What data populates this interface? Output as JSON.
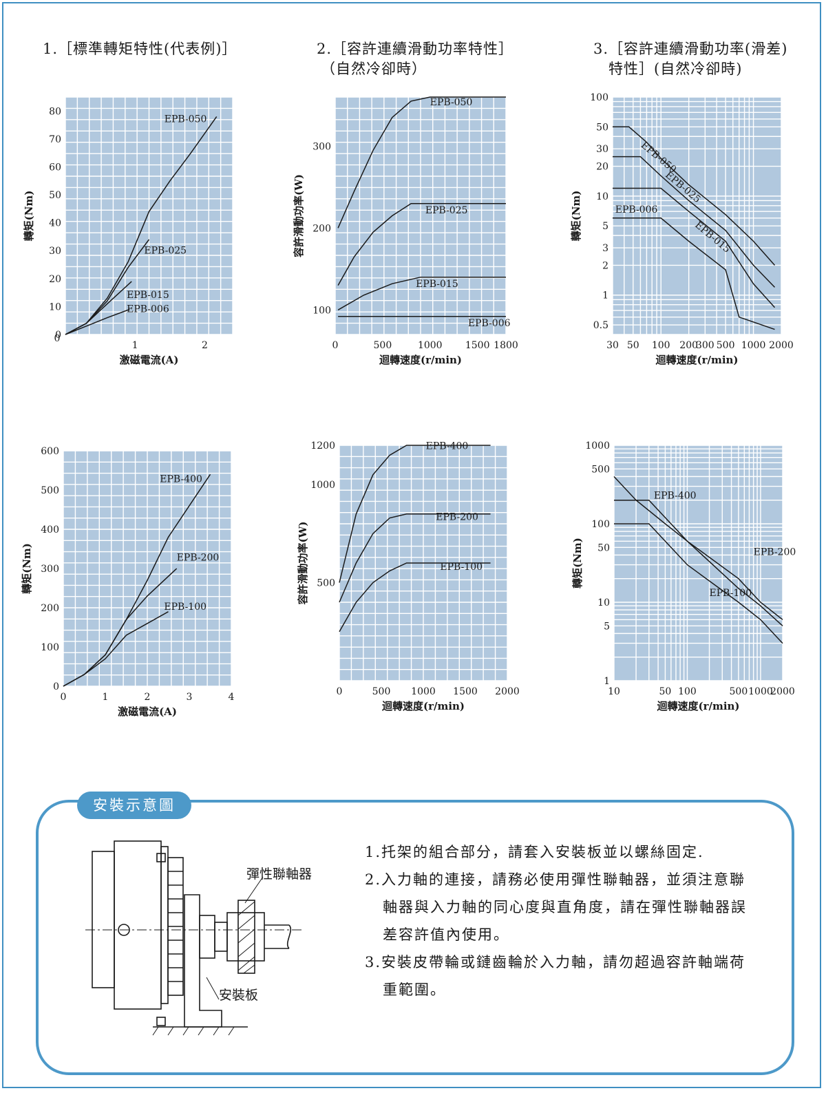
{
  "sections": [
    {
      "title_lines": [
        "1.［標準轉矩特性(代表例)］"
      ]
    },
    {
      "title_lines": [
        "2.［容許連續滑動功率特性］",
        "（自然冷卻時）"
      ]
    },
    {
      "title_lines": [
        "3.［容許連續滑動功率(滑差)",
        "特性］(自然冷卻時)"
      ]
    }
  ],
  "chart_data": [
    {
      "type": "line",
      "xlabel": "激磁電流(A)",
      "ylabel": "轉矩(Nm)",
      "xlim": [
        0,
        2.4
      ],
      "ylim": [
        0,
        85
      ],
      "xticks": [
        0,
        1,
        2
      ],
      "xtick_labels": [
        "",
        "1",
        "2"
      ],
      "yticks": [
        0,
        10,
        20,
        30,
        40,
        50,
        60,
        70,
        80
      ],
      "grid": true,
      "xscale": "linear",
      "yscale": "linear",
      "series": [
        {
          "name": "EPB-050",
          "points": [
            [
              0,
              0
            ],
            [
              0.3,
              4
            ],
            [
              0.6,
              13
            ],
            [
              0.9,
              26
            ],
            [
              1.2,
              44
            ],
            [
              1.5,
              55
            ],
            [
              1.8,
              65
            ],
            [
              2.17,
              78
            ]
          ],
          "label_pos": [
            1.42,
            76
          ]
        },
        {
          "name": "EPB-025",
          "points": [
            [
              0,
              0
            ],
            [
              0.3,
              4
            ],
            [
              0.6,
              12
            ],
            [
              0.9,
              24
            ],
            [
              1.2,
              34
            ]
          ],
          "label_pos": [
            1.13,
            29
          ]
        },
        {
          "name": "EPB-015",
          "points": [
            [
              0,
              0
            ],
            [
              0.3,
              4
            ],
            [
              0.6,
              11
            ],
            [
              0.95,
              19
            ]
          ],
          "label_pos": [
            0.88,
            13
          ]
        },
        {
          "name": "EPB-006",
          "points": [
            [
              0,
              0
            ],
            [
              0.3,
              3
            ],
            [
              0.6,
              6
            ],
            [
              0.92,
              9
            ]
          ],
          "label_pos": [
            0.88,
            8
          ]
        }
      ]
    },
    {
      "type": "line",
      "xlabel": "迴轉速度(r/min)",
      "ylabel": "容許滑動功率(W)",
      "xlim": [
        0,
        1800
      ],
      "ylim": [
        70,
        360
      ],
      "xticks": [
        0,
        500,
        1000,
        1500,
        1800
      ],
      "yticks": [
        100,
        200,
        300
      ],
      "grid": true,
      "xscale": "linear",
      "yscale": "linear",
      "series": [
        {
          "name": "EPB-050",
          "points": [
            [
              30,
              200
            ],
            [
              200,
              245
            ],
            [
              400,
              295
            ],
            [
              600,
              335
            ],
            [
              800,
              355
            ],
            [
              1000,
              360
            ],
            [
              1800,
              360
            ]
          ],
          "label_pos": [
            1000,
            350
          ]
        },
        {
          "name": "EPB-025",
          "points": [
            [
              30,
              130
            ],
            [
              200,
              165
            ],
            [
              400,
              195
            ],
            [
              600,
              215
            ],
            [
              800,
              230
            ],
            [
              1000,
              230
            ],
            [
              1800,
              230
            ]
          ],
          "label_pos": [
            950,
            218
          ]
        },
        {
          "name": "EPB-015",
          "points": [
            [
              30,
              100
            ],
            [
              300,
              118
            ],
            [
              600,
              132
            ],
            [
              900,
              140
            ],
            [
              1800,
              140
            ]
          ],
          "label_pos": [
            850,
            128
          ]
        },
        {
          "name": "EPB-006",
          "points": [
            [
              30,
              92
            ],
            [
              1800,
              92
            ]
          ],
          "label_pos": [
            1400,
            80
          ]
        }
      ]
    },
    {
      "type": "line",
      "xlabel": "迴轉速度(r/min)",
      "ylabel": "轉矩(Nm)",
      "xlim": [
        30,
        2000
      ],
      "ylim": [
        0.4,
        100
      ],
      "xticks": [
        30,
        50,
        100,
        200,
        300,
        500,
        1000,
        2000
      ],
      "yticks": [
        0.5,
        1,
        2,
        3,
        5,
        10,
        20,
        30,
        50,
        100
      ],
      "grid": true,
      "xscale": "log",
      "yscale": "log",
      "series": [
        {
          "name": "EPB-050",
          "points": [
            [
              30,
              50
            ],
            [
              45,
              50
            ],
            [
              70,
              35
            ],
            [
              100,
              24
            ],
            [
              200,
              13
            ],
            [
              500,
              6.5
            ],
            [
              1000,
              3.5
            ],
            [
              1700,
              2.0
            ]
          ],
          "label_pos": [
            60,
            32
          ],
          "label_rotate": 40
        },
        {
          "name": "EPB-025",
          "points": [
            [
              30,
              25
            ],
            [
              60,
              25
            ],
            [
              100,
              16
            ],
            [
              200,
              9
            ],
            [
              500,
              4.5
            ],
            [
              1000,
              2.0
            ],
            [
              1700,
              1.2
            ]
          ],
          "label_pos": [
            110,
            16
          ],
          "label_rotate": 40
        },
        {
          "name": "EPB-015",
          "points": [
            [
              30,
              12
            ],
            [
              100,
              12
            ],
            [
              200,
              7
            ],
            [
              500,
              3.5
            ],
            [
              1000,
              1.3
            ],
            [
              1700,
              0.75
            ]
          ],
          "label_pos": [
            230,
            5
          ],
          "label_rotate": 40
        },
        {
          "name": "EPB-006",
          "points": [
            [
              30,
              6
            ],
            [
              100,
              6
            ],
            [
              200,
              3.5
            ],
            [
              500,
              1.8
            ],
            [
              700,
              0.6
            ],
            [
              1700,
              0.45
            ]
          ],
          "label_pos": [
            32,
            6.8
          ]
        }
      ]
    },
    {
      "type": "line",
      "xlabel": "激磁電流(A)",
      "ylabel": "轉矩(Nm)",
      "xlim": [
        0,
        4
      ],
      "ylim": [
        0,
        600
      ],
      "xticks": [
        0,
        1,
        2,
        3,
        4
      ],
      "xtick_labels": [
        "0",
        "1",
        "2",
        "3",
        "4"
      ],
      "yticks": [
        0,
        100,
        200,
        300,
        400,
        500,
        600
      ],
      "grid": true,
      "xscale": "linear",
      "yscale": "linear",
      "series": [
        {
          "name": "EPB-400",
          "points": [
            [
              0,
              0
            ],
            [
              0.5,
              30
            ],
            [
              1.0,
              80
            ],
            [
              1.5,
              170
            ],
            [
              2.0,
              270
            ],
            [
              2.5,
              380
            ],
            [
              3.0,
              460
            ],
            [
              3.5,
              540
            ]
          ],
          "label_pos": [
            2.3,
            520
          ]
        },
        {
          "name": "EPB-200",
          "points": [
            [
              0,
              0
            ],
            [
              0.5,
              30
            ],
            [
              1.0,
              80
            ],
            [
              1.5,
              170
            ],
            [
              2.0,
              230
            ],
            [
              2.7,
              300
            ]
          ],
          "label_pos": [
            2.7,
            320
          ]
        },
        {
          "name": "EPB-100",
          "points": [
            [
              0,
              0
            ],
            [
              0.5,
              30
            ],
            [
              1.0,
              70
            ],
            [
              1.5,
              130
            ],
            [
              2.0,
              160
            ],
            [
              2.5,
              190
            ]
          ],
          "label_pos": [
            2.4,
            195
          ]
        }
      ]
    },
    {
      "type": "line",
      "xlabel": "迴轉速度(r/min)",
      "ylabel": "容許滑動功率(W)",
      "xlim": [
        0,
        2000
      ],
      "ylim": [
        0,
        1200
      ],
      "xticks": [
        0,
        500,
        1000,
        1500,
        2000
      ],
      "yticks": [
        500,
        1000,
        1200
      ],
      "grid": true,
      "xscale": "linear",
      "yscale": "linear",
      "series": [
        {
          "name": "EPB-400",
          "points": [
            [
              0,
              500
            ],
            [
              200,
              850
            ],
            [
              400,
              1050
            ],
            [
              600,
              1150
            ],
            [
              800,
              1200
            ],
            [
              1800,
              1200
            ]
          ],
          "label_pos": [
            1030,
            1180
          ]
        },
        {
          "name": "EPB-200",
          "points": [
            [
              0,
              400
            ],
            [
              200,
              600
            ],
            [
              400,
              750
            ],
            [
              600,
              830
            ],
            [
              800,
              850
            ],
            [
              1800,
              850
            ]
          ],
          "label_pos": [
            1150,
            820
          ]
        },
        {
          "name": "EPB-100",
          "points": [
            [
              0,
              250
            ],
            [
              200,
              400
            ],
            [
              400,
              500
            ],
            [
              600,
              560
            ],
            [
              800,
              600
            ],
            [
              1800,
              600
            ]
          ],
          "label_pos": [
            1200,
            565
          ]
        }
      ]
    },
    {
      "type": "line",
      "xlabel": "迴轉速度(r/min)",
      "ylabel": "轉矩(Nm)",
      "xlim": [
        10,
        2000
      ],
      "ylim": [
        1,
        1000
      ],
      "xticks": [
        10,
        50,
        100,
        500,
        1000,
        2000
      ],
      "yticks": [
        1,
        5,
        10,
        50,
        100,
        500,
        1000
      ],
      "grid": true,
      "xscale": "log",
      "yscale": "log",
      "series": [
        {
          "name": "EPB-400",
          "points": [
            [
              10,
              400
            ],
            [
              20,
              200
            ],
            [
              50,
              100
            ],
            [
              100,
              60
            ],
            [
              500,
              20
            ],
            [
              1000,
              10
            ],
            [
              2000,
              6
            ]
          ],
          "label_pos": [
            35,
            210
          ]
        },
        {
          "name": "EPB-200",
          "points": [
            [
              10,
              200
            ],
            [
              30,
              200
            ],
            [
              50,
              120
            ],
            [
              100,
              60
            ],
            [
              500,
              15
            ],
            [
              1000,
              9
            ],
            [
              2000,
              5
            ]
          ],
          "label_pos": [
            800,
            40
          ]
        },
        {
          "name": "EPB-100",
          "points": [
            [
              10,
              100
            ],
            [
              30,
              100
            ],
            [
              50,
              60
            ],
            [
              100,
              30
            ],
            [
              500,
              10
            ],
            [
              1000,
              6
            ],
            [
              2000,
              3
            ]
          ],
          "label_pos": [
            200,
            12
          ]
        }
      ]
    }
  ],
  "install": {
    "tab_label": "安裝示意圖",
    "label_coupling": "彈性聯軸器",
    "label_plate": "安裝板",
    "notes": [
      {
        "text": "1.托架的組合部分，請套入安裝板並以螺絲固定.",
        "indent": false
      },
      {
        "text": "2.入力軸的連接，請務必使用彈性聯軸器，並須注意聯",
        "indent": false
      },
      {
        "text": "軸器與入力軸的同心度與直角度，請在彈性聯軸器誤",
        "indent": true
      },
      {
        "text": "差容許值內使用。",
        "indent": true
      },
      {
        "text": "3.安裝皮帶輪或鏈齒輪於入力軸，請勿超過容許軸端荷",
        "indent": false
      },
      {
        "text": "重範圍。",
        "indent": true
      }
    ]
  },
  "colors": {
    "plot_background": "#b1c8de",
    "grid": "#ffffff",
    "curve": "#1a1a1a",
    "frame_accent": "#4d99c9"
  }
}
